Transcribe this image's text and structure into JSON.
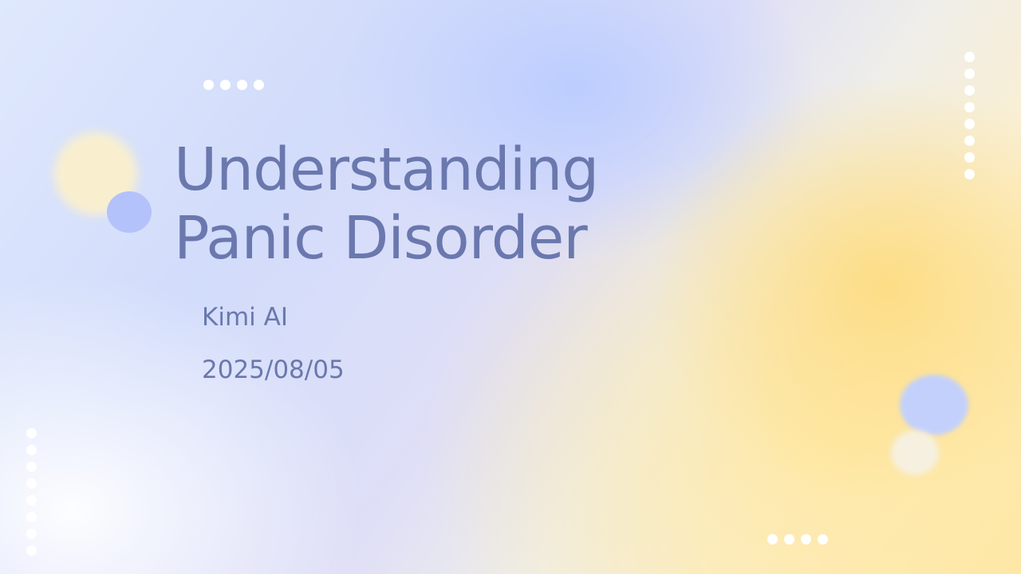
{
  "slide": {
    "title_line1": "Understanding",
    "title_line2": "Panic Disorder",
    "author": "Kimi AI",
    "date": "2025/08/05"
  },
  "decorations": {
    "top_dot_count": 4,
    "bottom_dot_count": 4,
    "right_dot_count": 8,
    "left_dot_count": 8,
    "text_color": "#6a78ae",
    "accent_blue": "#b3c2fb",
    "accent_yellow": "#fde7a8"
  }
}
